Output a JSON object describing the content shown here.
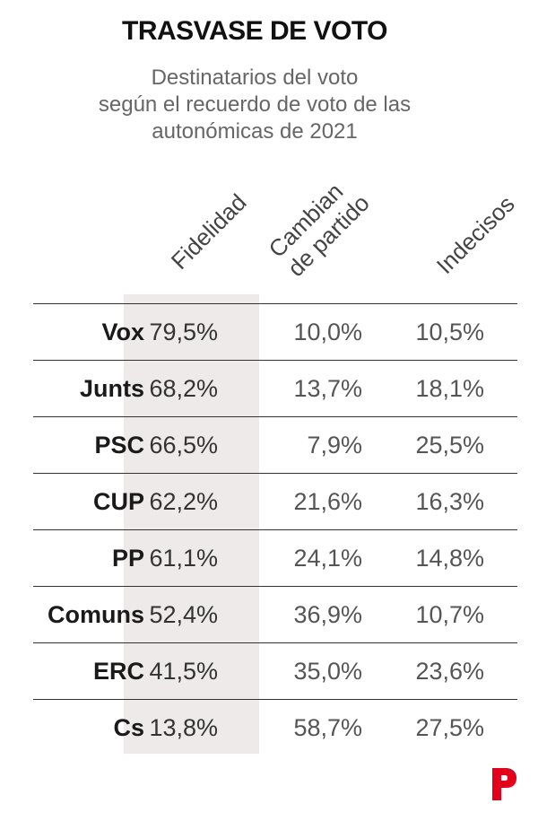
{
  "title": "TRASVASE DE VOTO",
  "subtitle_lines": [
    "Destinatarios del voto",
    "según el recuerdo de voto de las",
    "autonómicas de 2021"
  ],
  "chart_data": {
    "type": "table",
    "columns": [
      {
        "lines": [
          "Fidelidad"
        ]
      },
      {
        "lines": [
          "Cambian",
          "de partido"
        ]
      },
      {
        "lines": [
          "Indecisos"
        ]
      }
    ],
    "highlight_column": 0,
    "rows": [
      {
        "party": "Vox",
        "values": [
          "79,5%",
          "10,0%",
          "10,5%"
        ]
      },
      {
        "party": "Junts",
        "values": [
          "68,2%",
          "13,7%",
          "18,1%"
        ]
      },
      {
        "party": "PSC",
        "values": [
          "66,5%",
          "7,9%",
          "25,5%"
        ]
      },
      {
        "party": "CUP",
        "values": [
          "62,2%",
          "21,6%",
          "16,3%"
        ]
      },
      {
        "party": "PP",
        "values": [
          "61,1%",
          "24,1%",
          "14,8%"
        ]
      },
      {
        "party": "Comuns",
        "values": [
          "52,4%",
          "36,9%",
          "10,7%"
        ]
      },
      {
        "party": "ERC",
        "values": [
          "41,5%",
          "35,0%",
          "23,6%"
        ]
      },
      {
        "party": "Cs",
        "values": [
          "13,8%",
          "58,7%",
          "27,5%"
        ]
      }
    ]
  },
  "colors": {
    "highlight": "#efeaea",
    "logo": "#e3001b"
  },
  "logo_icon": "brand-p-logo-icon"
}
